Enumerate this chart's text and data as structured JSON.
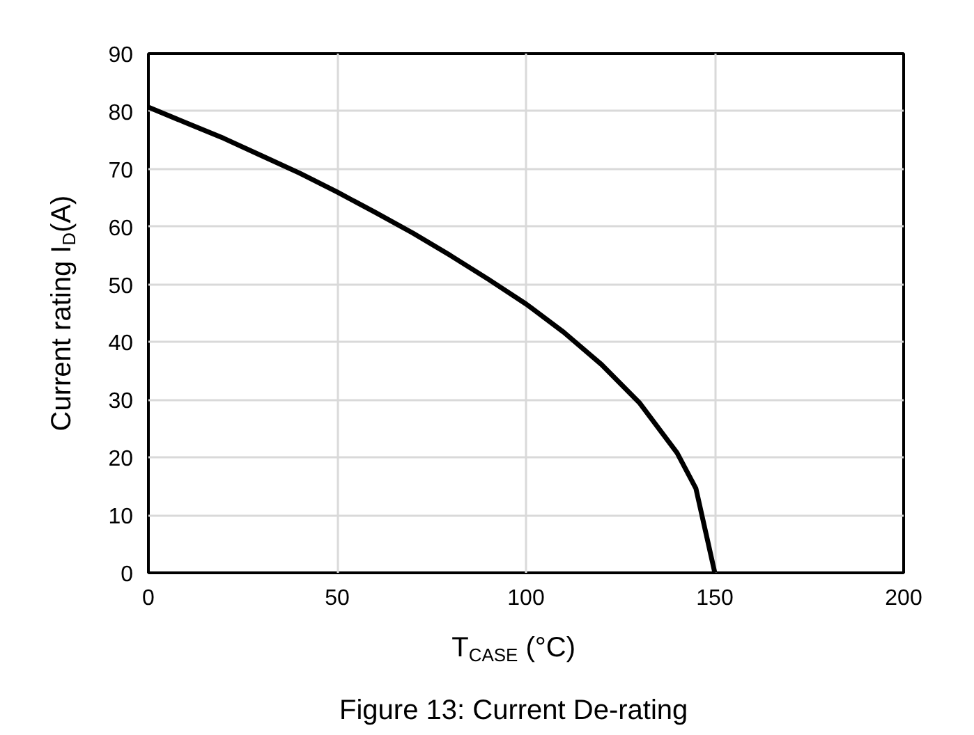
{
  "chart_data": {
    "type": "line",
    "title": "Figure 13: Current De-rating",
    "xlabel": "T$_{CASE}$ (°C)",
    "ylabel": "Current rating I$_{D}$(A)",
    "x": [
      0,
      10,
      20,
      30,
      40,
      50,
      60,
      70,
      80,
      90,
      100,
      110,
      120,
      130,
      140,
      145,
      150
    ],
    "series": [
      {
        "color": "#000000",
        "values": [
          80.7,
          78,
          75.3,
          72.3,
          69.3,
          66,
          62.5,
          58.9,
          55,
          50.9,
          46.6,
          41.7,
          36.1,
          29.5,
          20.8,
          14.6,
          0
        ]
      }
    ],
    "xlim": [
      0,
      200
    ],
    "xticks": [
      0,
      50,
      100,
      150,
      200
    ],
    "ylim": [
      0,
      90
    ],
    "yticks": [
      0,
      10,
      20,
      30,
      40,
      50,
      60,
      70,
      80,
      90
    ],
    "grid": true,
    "marker": "none",
    "line_style": "solid"
  }
}
